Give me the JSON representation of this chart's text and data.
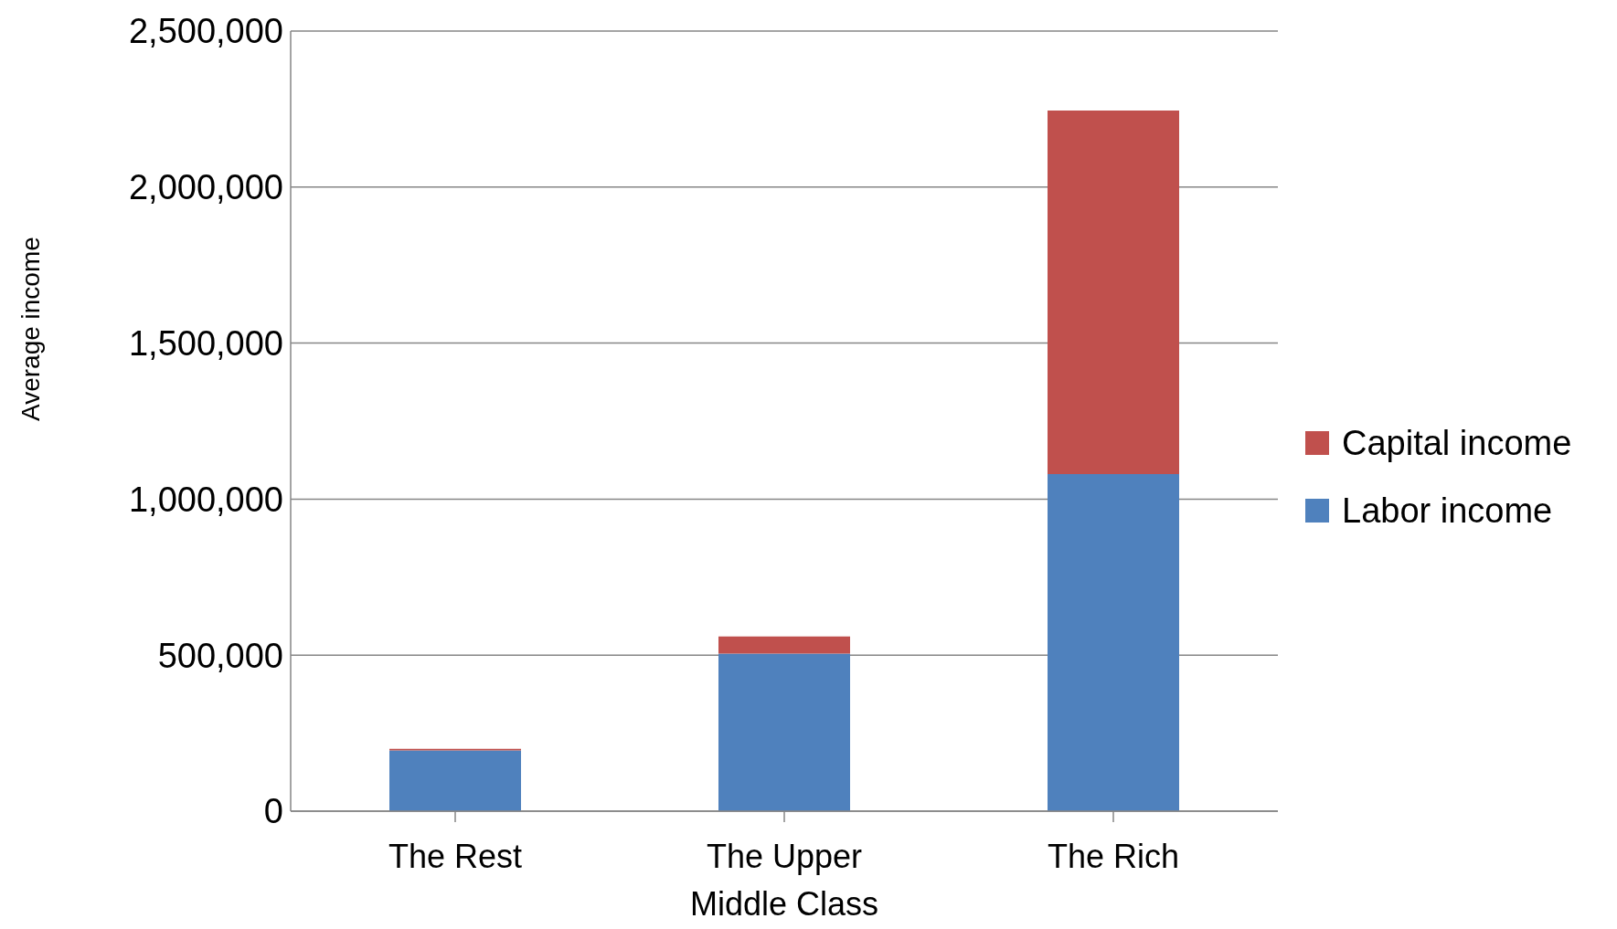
{
  "chart_data": {
    "type": "bar",
    "stacked": true,
    "ylabel": "Average income",
    "categories": [
      "The Rest",
      "The Upper Middle Class",
      "The Rich"
    ],
    "series": [
      {
        "name": "Labor income",
        "color": "#4f81bd",
        "values": [
          195000,
          505000,
          1080000
        ]
      },
      {
        "name": "Capital income",
        "color": "#c0504d",
        "values": [
          5000,
          55000,
          1165000
        ]
      }
    ],
    "ylim": [
      0,
      2500000
    ],
    "yticks": [
      0,
      {
        "value": 500000,
        "label": "500,000"
      },
      {
        "value": 1000000,
        "label": "1,000,000"
      },
      {
        "value": 1500000,
        "label": "1,500,000"
      },
      {
        "value": 2000000,
        "label": "2,000,000"
      },
      {
        "value": 2500000,
        "label": "2,500,000"
      }
    ],
    "grid": "y",
    "legend": "right"
  }
}
